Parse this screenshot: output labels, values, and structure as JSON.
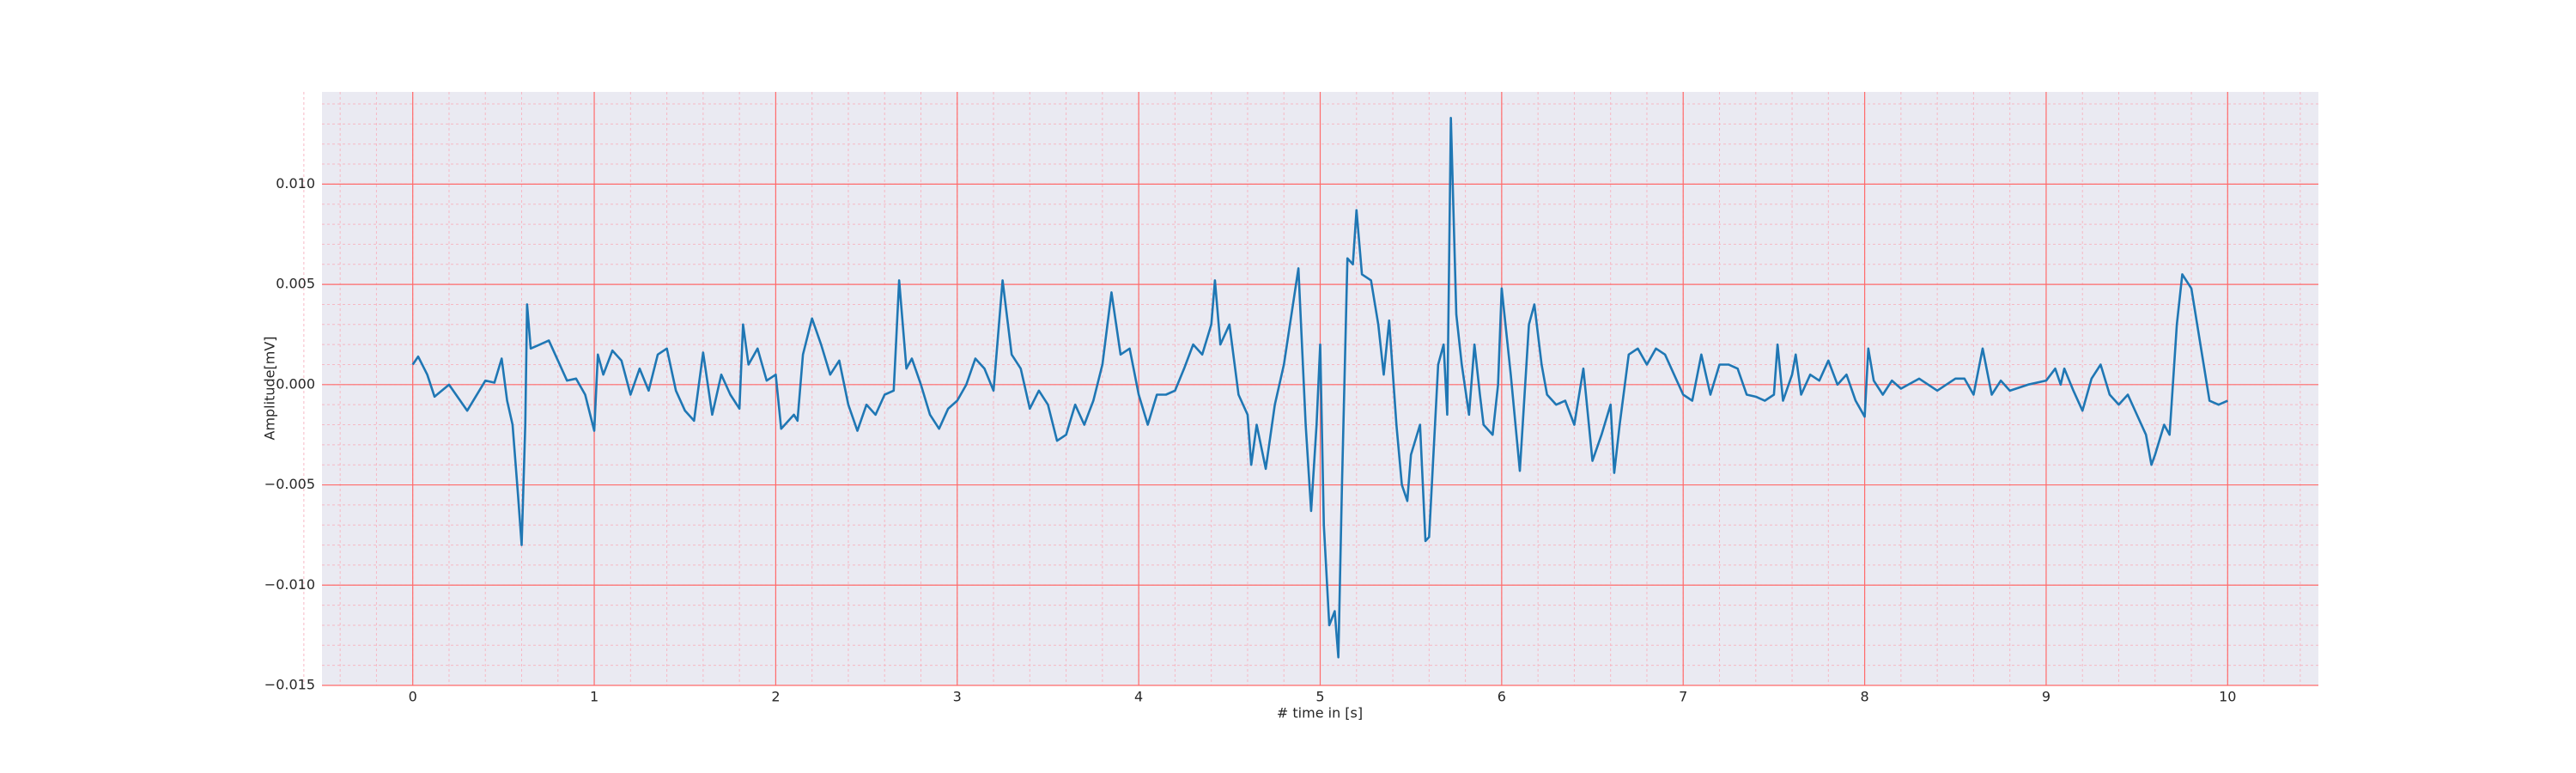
{
  "chart_data": {
    "type": "line",
    "x_label": "# time in [s]",
    "y_label": "Amplitude[mV]",
    "xlim": [
      -0.5,
      10.5
    ],
    "ylim": [
      -0.015,
      0.0146
    ],
    "xticks": [
      0,
      1,
      2,
      3,
      4,
      5,
      6,
      7,
      8,
      9,
      10
    ],
    "yticks": [
      {
        "value": -0.015,
        "label": "−0.015"
      },
      {
        "value": -0.01,
        "label": "−0.010"
      },
      {
        "value": -0.005,
        "label": "−0.005"
      },
      {
        "value": 0,
        "label": "0.000"
      },
      {
        "value": 0.005,
        "label": "0.005"
      },
      {
        "value": 0.01,
        "label": "0.010"
      }
    ],
    "grid": true,
    "minor_grid": true,
    "background": "#eaeaf2",
    "grid_color": "#ff6b6b",
    "minor_grid_color": "#f6b8c4",
    "series": [
      {
        "color": "#1f77b4",
        "x": [
          0,
          0.03,
          0.08,
          0.12,
          0.2,
          0.3,
          0.4,
          0.45,
          0.49,
          0.52,
          0.55,
          0.58,
          0.6,
          0.62,
          0.63,
          0.65,
          0.7,
          0.75,
          0.8,
          0.85,
          0.9,
          0.95,
          1.0,
          1.02,
          1.05,
          1.1,
          1.15,
          1.2,
          1.25,
          1.3,
          1.35,
          1.4,
          1.45,
          1.5,
          1.55,
          1.6,
          1.65,
          1.7,
          1.75,
          1.8,
          1.82,
          1.85,
          1.9,
          1.95,
          2.0,
          2.03,
          2.1,
          2.12,
          2.15,
          2.2,
          2.25,
          2.3,
          2.35,
          2.4,
          2.45,
          2.5,
          2.55,
          2.6,
          2.65,
          2.68,
          2.72,
          2.75,
          2.8,
          2.85,
          2.9,
          2.95,
          3.0,
          3.05,
          3.1,
          3.15,
          3.2,
          3.25,
          3.3,
          3.35,
          3.4,
          3.45,
          3.5,
          3.55,
          3.6,
          3.65,
          3.7,
          3.75,
          3.8,
          3.85,
          3.9,
          3.95,
          4.0,
          4.05,
          4.1,
          4.15,
          4.2,
          4.25,
          4.3,
          4.35,
          4.4,
          4.42,
          4.45,
          4.5,
          4.55,
          4.6,
          4.62,
          4.65,
          4.7,
          4.75,
          4.8,
          4.85,
          4.88,
          4.92,
          4.95,
          4.98,
          5.0,
          5.02,
          5.05,
          5.08,
          5.1,
          5.12,
          5.15,
          5.18,
          5.2,
          5.23,
          5.28,
          5.32,
          5.35,
          5.38,
          5.42,
          5.45,
          5.48,
          5.5,
          5.55,
          5.58,
          5.6,
          5.65,
          5.68,
          5.7,
          5.72,
          5.75,
          5.78,
          5.82,
          5.85,
          5.88,
          5.9,
          5.95,
          5.98,
          6.0,
          6.05,
          6.1,
          6.15,
          6.18,
          6.22,
          6.25,
          6.3,
          6.35,
          6.4,
          6.45,
          6.5,
          6.55,
          6.6,
          6.62,
          6.65,
          6.7,
          6.75,
          6.8,
          6.85,
          6.9,
          6.95,
          7.0,
          7.05,
          7.1,
          7.15,
          7.2,
          7.25,
          7.3,
          7.35,
          7.4,
          7.45,
          7.5,
          7.52,
          7.55,
          7.6,
          7.62,
          7.65,
          7.7,
          7.75,
          7.8,
          7.85,
          7.9,
          7.95,
          8.0,
          8.02,
          8.05,
          8.1,
          8.15,
          8.2,
          8.3,
          8.4,
          8.5,
          8.55,
          8.6,
          8.65,
          8.7,
          8.75,
          8.8,
          8.9,
          9.0,
          9.05,
          9.08,
          9.1,
          9.15,
          9.2,
          9.25,
          9.3,
          9.35,
          9.4,
          9.45,
          9.5,
          9.55,
          9.58,
          9.6,
          9.65,
          9.68,
          9.72,
          9.75,
          9.8,
          9.85,
          9.9,
          9.95,
          10.0
        ],
        "values": [
          0.001,
          0.0014,
          0.0005,
          -0.0006,
          0.0,
          -0.0013,
          0.0002,
          0.0001,
          0.0013,
          -0.0008,
          -0.002,
          -0.0055,
          -0.008,
          -0.002,
          0.004,
          0.0018,
          0.002,
          0.0022,
          0.0012,
          0.0002,
          0.0003,
          -0.0005,
          -0.0023,
          0.0015,
          0.0005,
          0.0017,
          0.0012,
          -0.0005,
          0.0008,
          -0.0003,
          0.0015,
          0.0018,
          -0.0003,
          -0.0013,
          -0.0018,
          0.0016,
          -0.0015,
          0.0005,
          -0.0005,
          -0.0012,
          0.003,
          0.001,
          0.0018,
          0.0002,
          0.0005,
          -0.0022,
          -0.0015,
          -0.0018,
          0.0015,
          0.0033,
          0.002,
          0.0005,
          0.0012,
          -0.001,
          -0.0023,
          -0.001,
          -0.0015,
          -0.0005,
          -0.0003,
          0.0052,
          0.0008,
          0.0013,
          0.0,
          -0.0015,
          -0.0022,
          -0.0012,
          -0.0008,
          0.0,
          0.0013,
          0.0008,
          -0.0003,
          0.0052,
          0.0015,
          0.0008,
          -0.0012,
          -0.0003,
          -0.001,
          -0.0028,
          -0.0025,
          -0.001,
          -0.002,
          -0.0008,
          0.001,
          0.0046,
          0.0015,
          0.0018,
          -0.0005,
          -0.002,
          -0.0005,
          -0.0005,
          -0.0003,
          0.0008,
          0.002,
          0.0015,
          0.003,
          0.0052,
          0.002,
          0.003,
          -0.0005,
          -0.0015,
          -0.004,
          -0.002,
          -0.0042,
          -0.001,
          0.001,
          0.004,
          0.0058,
          -0.002,
          -0.0063,
          -0.002,
          0.002,
          -0.007,
          -0.012,
          -0.0113,
          -0.0136,
          -0.005,
          0.0063,
          0.006,
          0.0087,
          0.0055,
          0.0052,
          0.003,
          0.0005,
          0.0032,
          -0.002,
          -0.005,
          -0.0058,
          -0.0035,
          -0.002,
          -0.0078,
          -0.0076,
          0.001,
          0.002,
          -0.0015,
          0.0133,
          0.0035,
          0.001,
          -0.0015,
          0.002,
          -0.0005,
          -0.002,
          -0.0025,
          0.0,
          0.0048,
          0.0005,
          -0.0043,
          0.003,
          0.004,
          0.001,
          -0.0005,
          -0.001,
          -0.0008,
          -0.002,
          0.0008,
          -0.0038,
          -0.0025,
          -0.001,
          -0.0044,
          -0.002,
          0.0015,
          0.0018,
          0.001,
          0.0018,
          0.0015,
          0.0005,
          -0.0005,
          -0.0008,
          0.0015,
          -0.0005,
          0.001,
          0.001,
          0.0008,
          -0.0005,
          -0.0006,
          -0.0008,
          -0.0005,
          0.002,
          -0.0008,
          0.0005,
          0.0015,
          -0.0005,
          0.0005,
          0.0002,
          0.0012,
          0.0,
          0.0005,
          -0.0008,
          -0.0016,
          0.0018,
          0.0002,
          -0.0005,
          0.0002,
          -0.0002,
          0.0003,
          -0.0003,
          0.0003,
          0.0003,
          -0.0005,
          0.0018,
          -0.0005,
          0.0002,
          -0.0003,
          0.0,
          0.0002,
          0.0008,
          0.0,
          0.0008,
          -0.0003,
          -0.0013,
          0.0003,
          0.001,
          -0.0005,
          -0.001,
          -0.0005,
          -0.0015,
          -0.0025,
          -0.004,
          -0.0035,
          -0.002,
          -0.0025,
          0.003,
          0.0055,
          0.0048,
          0.002,
          -0.0008,
          -0.001,
          -0.0008
        ]
      }
    ]
  }
}
